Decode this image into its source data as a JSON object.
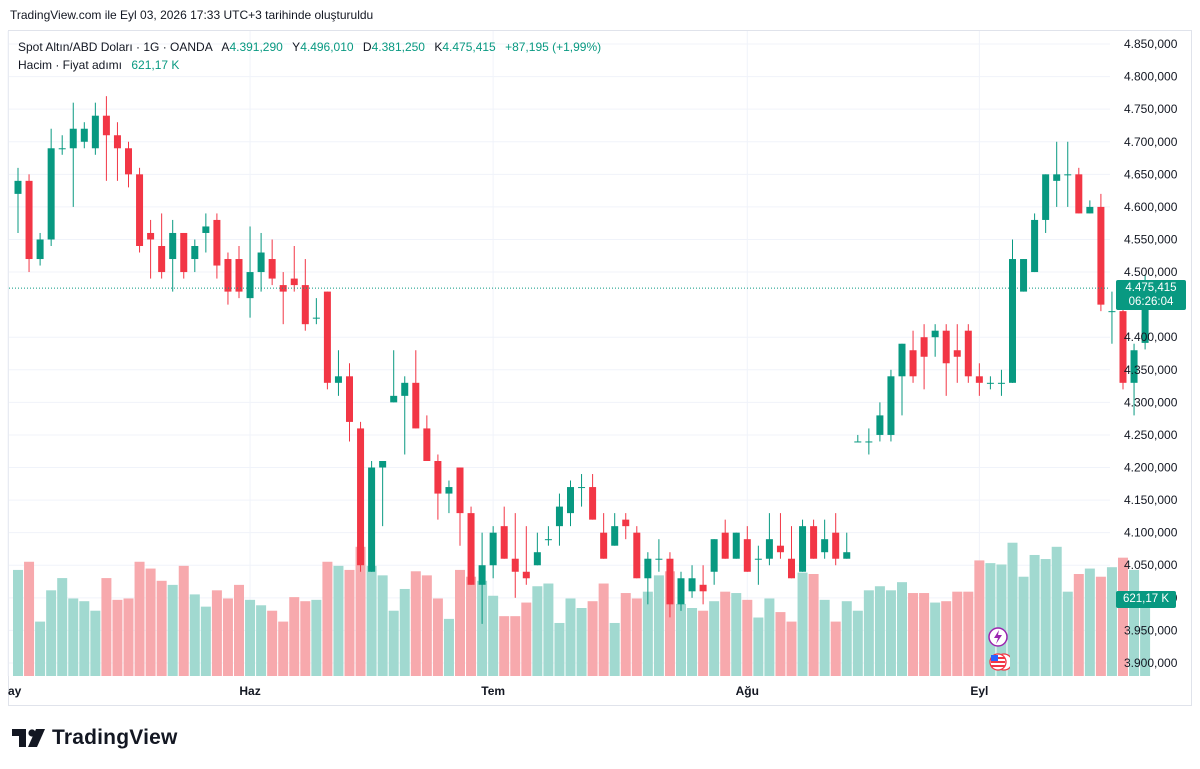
{
  "top_note": "TradingView.com ile Eyl 03, 2026 17:33 UTC+3 tarihinde oluşturuldu",
  "legend": {
    "symbol": "Spot Altın/ABD Doları · 1G · OANDA",
    "open_label": "A",
    "open_value": "4.391,290",
    "high_label": "Y",
    "high_value": "4.496,010",
    "low_label": "D",
    "low_value": "4.381,250",
    "close_label": "K",
    "close_value": "4.475,415",
    "change_value": "+87,195 (+1,99%)",
    "volume_label": "Hacim · Fiyat adımı",
    "volume_value": "621,17 K"
  },
  "price_tag": {
    "price": "4.475,415",
    "countdown": "06:26:04"
  },
  "volume_tag": "621,17 K",
  "brand": "TradingView",
  "colors": {
    "up": "#089981",
    "down": "#f23645",
    "up_volume": "#a1d9d0",
    "down_volume": "#f7a9ad",
    "grid": "#f0f3fa"
  },
  "icons": [
    "lightning-icon",
    "us-flag-icon"
  ],
  "chart_data": {
    "type": "candlestick",
    "y_ticks": [
      "4.850,000",
      "4.800,000",
      "4.750,000",
      "4.700,000",
      "4.650,000",
      "4.600,000",
      "4.550,000",
      "4.500,000",
      "4.400,000",
      "4.350,000",
      "4.300,000",
      "4.250,000",
      "4.200,000",
      "4.150,000",
      "4.100,000",
      "4.050,000",
      "4.000,000",
      "3.950,000",
      "3.900,000"
    ],
    "y_tick_values": [
      4850,
      4800,
      4750,
      4700,
      4650,
      4600,
      4550,
      4500,
      4400,
      4350,
      4300,
      4250,
      4200,
      4150,
      4100,
      4050,
      4000,
      3950,
      3900
    ],
    "ylim": [
      3880,
      4870
    ],
    "x_labels": [
      {
        "label": "ay",
        "index": 0
      },
      {
        "label": "Haz",
        "index": 21
      },
      {
        "label": "Tem",
        "index": 43
      },
      {
        "label": "Ağu",
        "index": 66
      },
      {
        "label": "Eyl",
        "index": 87
      }
    ],
    "ohlcv": [
      [
        4620,
        4660,
        4560,
        4640,
        0.78
      ],
      [
        4640,
        4650,
        4500,
        4520,
        0.84
      ],
      [
        4520,
        4560,
        4510,
        4550,
        0.4
      ],
      [
        4550,
        4720,
        4540,
        4690,
        0.63
      ],
      [
        4690,
        4710,
        4680,
        4690,
        0.72
      ],
      [
        4690,
        4760,
        4600,
        4720,
        0.57
      ],
      [
        4700,
        4730,
        4690,
        4720,
        0.55
      ],
      [
        4690,
        4760,
        4680,
        4740,
        0.48
      ],
      [
        4740,
        4770,
        4640,
        4710,
        0.72
      ],
      [
        4710,
        4730,
        4640,
        4690,
        0.56
      ],
      [
        4690,
        4700,
        4630,
        4650,
        0.57
      ],
      [
        4650,
        4660,
        4530,
        4540,
        0.84
      ],
      [
        4560,
        4580,
        4490,
        4550,
        0.79
      ],
      [
        4540,
        4590,
        4490,
        4500,
        0.7
      ],
      [
        4520,
        4580,
        4470,
        4560,
        0.67
      ],
      [
        4560,
        4560,
        4490,
        4500,
        0.81
      ],
      [
        4520,
        4550,
        4500,
        4540,
        0.6
      ],
      [
        4560,
        4590,
        4530,
        4570,
        0.51
      ],
      [
        4580,
        4590,
        4490,
        4510,
        0.63
      ],
      [
        4520,
        4530,
        4450,
        4470,
        0.57
      ],
      [
        4520,
        4540,
        4460,
        4470,
        0.67
      ],
      [
        4460,
        4570,
        4430,
        4500,
        0.56
      ],
      [
        4500,
        4560,
        4470,
        4530,
        0.52
      ],
      [
        4520,
        4550,
        4480,
        4490,
        0.48
      ],
      [
        4480,
        4500,
        4420,
        4470,
        0.4
      ],
      [
        4490,
        4540,
        4470,
        4480,
        0.58
      ],
      [
        4480,
        4520,
        4410,
        4420,
        0.55
      ],
      [
        4430,
        4460,
        4420,
        4430,
        0.56
      ],
      [
        4470,
        4470,
        4320,
        4330,
        0.84
      ],
      [
        4330,
        4380,
        4310,
        4340,
        0.81
      ],
      [
        4340,
        4360,
        4240,
        4270,
        0.78
      ],
      [
        4260,
        4270,
        4040,
        4050,
        0.95
      ],
      [
        4040,
        4210,
        4050,
        4200,
        0.81
      ],
      [
        4200,
        4210,
        4110,
        4210,
        0.74
      ],
      [
        4300,
        4380,
        4300,
        4310,
        0.48
      ],
      [
        4310,
        4340,
        4220,
        4330,
        0.64
      ],
      [
        4330,
        4380,
        4260,
        4260,
        0.77
      ],
      [
        4260,
        4280,
        4210,
        4210,
        0.74
      ],
      [
        4210,
        4220,
        4120,
        4160,
        0.57
      ],
      [
        4160,
        4180,
        4130,
        4170,
        0.42
      ],
      [
        4200,
        4200,
        4080,
        4130,
        0.78
      ],
      [
        4130,
        4140,
        4050,
        4020,
        0.73
      ],
      [
        4020,
        4100,
        3960,
        4050,
        0.7
      ],
      [
        4050,
        4110,
        4030,
        4100,
        0.59
      ],
      [
        4110,
        4140,
        4070,
        4060,
        0.44
      ],
      [
        4060,
        4130,
        4000,
        4040,
        0.44
      ],
      [
        4040,
        4110,
        4020,
        4030,
        0.54
      ],
      [
        4050,
        4100,
        4050,
        4070,
        0.66
      ],
      [
        4090,
        4110,
        4080,
        4090,
        0.68
      ],
      [
        4110,
        4160,
        4080,
        4140,
        0.39
      ],
      [
        4130,
        4180,
        4110,
        4170,
        0.57
      ],
      [
        4170,
        4190,
        4140,
        4170,
        0.5
      ],
      [
        4170,
        4190,
        4120,
        4120,
        0.55
      ],
      [
        4100,
        4130,
        4060,
        4060,
        0.68
      ],
      [
        4080,
        4130,
        4080,
        4110,
        0.39
      ],
      [
        4120,
        4130,
        4090,
        4110,
        0.61
      ],
      [
        4100,
        4110,
        4030,
        4030,
        0.57
      ],
      [
        4030,
        4070,
        3990,
        4060,
        0.62
      ],
      [
        4060,
        4090,
        4040,
        4060,
        0.74
      ],
      [
        4060,
        4070,
        3970,
        3990,
        0.77
      ],
      [
        3990,
        4040,
        3980,
        4030,
        0.53
      ],
      [
        4010,
        4050,
        4000,
        4030,
        0.5
      ],
      [
        4020,
        4050,
        3990,
        4010,
        0.48
      ],
      [
        4040,
        4090,
        4020,
        4090,
        0.55
      ],
      [
        4100,
        4120,
        4060,
        4060,
        0.62
      ],
      [
        4060,
        4100,
        4060,
        4100,
        0.61
      ],
      [
        4090,
        4110,
        4040,
        4040,
        0.56
      ],
      [
        4060,
        4080,
        4020,
        4060,
        0.43
      ],
      [
        4060,
        4130,
        4050,
        4090,
        0.57
      ],
      [
        4080,
        4130,
        4060,
        4070,
        0.47
      ],
      [
        4060,
        4110,
        4030,
        4030,
        0.4
      ],
      [
        4040,
        4120,
        4040,
        4110,
        0.76
      ],
      [
        4110,
        4120,
        4060,
        4060,
        0.75
      ],
      [
        4070,
        4120,
        4060,
        4090,
        0.56
      ],
      [
        4100,
        4130,
        4050,
        4060,
        0.4
      ],
      [
        4060,
        4100,
        4060,
        4070,
        0.55
      ],
      [
        4240,
        4250,
        4250,
        4240,
        0.48
      ],
      [
        4240,
        4260,
        4220,
        4240,
        0.63
      ],
      [
        4250,
        4300,
        4240,
        4280,
        0.66
      ],
      [
        4250,
        4350,
        4240,
        4340,
        0.63
      ],
      [
        4340,
        4390,
        4280,
        4390,
        0.69
      ],
      [
        4380,
        4410,
        4330,
        4340,
        0.61
      ],
      [
        4400,
        4420,
        4320,
        4370,
        0.61
      ],
      [
        4400,
        4420,
        4370,
        4410,
        0.54
      ],
      [
        4410,
        4420,
        4310,
        4360,
        0.55
      ],
      [
        4380,
        4420,
        4330,
        4370,
        0.62
      ],
      [
        4410,
        4420,
        4330,
        4340,
        0.62
      ],
      [
        4340,
        4360,
        4310,
        4330,
        0.85
      ],
      [
        4330,
        4340,
        4320,
        4330,
        0.83
      ],
      [
        4330,
        4350,
        4310,
        4330,
        0.82
      ],
      [
        4330,
        4550,
        4330,
        4520,
        0.98
      ],
      [
        4470,
        4500,
        4470,
        4520,
        0.73
      ],
      [
        4500,
        4590,
        4500,
        4580,
        0.89
      ],
      [
        4580,
        4650,
        4560,
        4650,
        0.86
      ],
      [
        4640,
        4700,
        4600,
        4650,
        0.95
      ],
      [
        4650,
        4700,
        4600,
        4650,
        0.62
      ],
      [
        4650,
        4660,
        4590,
        4590,
        0.75
      ],
      [
        4590,
        4610,
        4590,
        4600,
        0.79
      ],
      [
        4600,
        4620,
        4440,
        4450,
        0.73
      ],
      [
        4440,
        4470,
        4390,
        4440,
        0.8
      ],
      [
        4440,
        4450,
        4320,
        4330,
        0.87
      ],
      [
        4330,
        4390,
        4280,
        4380,
        0.78
      ],
      [
        4391.29,
        4496.01,
        4381.25,
        4475.415,
        0.54
      ]
    ],
    "volume_max": 1.0,
    "last_price": 4475.415
  }
}
